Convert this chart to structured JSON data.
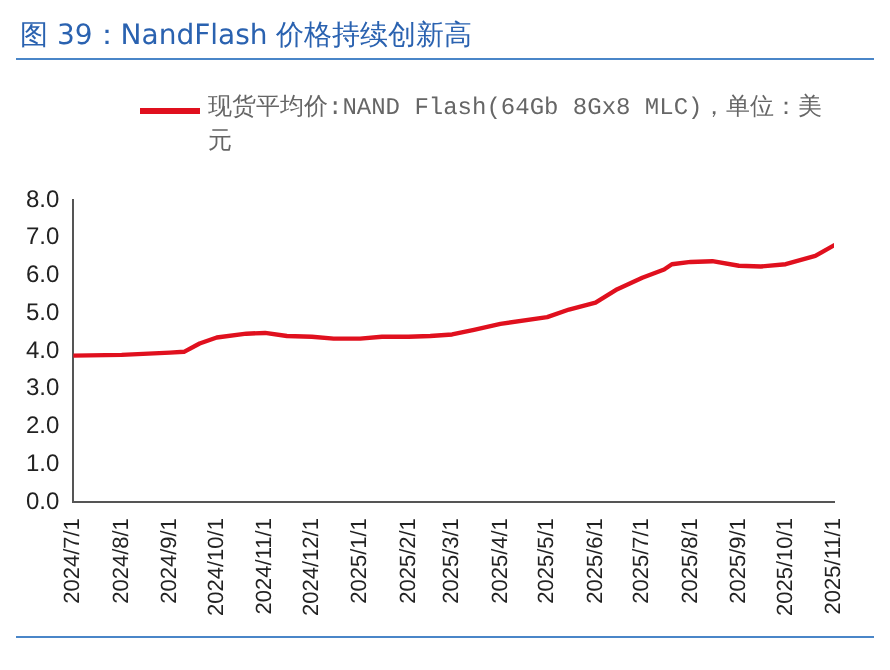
{
  "chart_data": {
    "type": "line",
    "title": "图 39：NandFlash 价格持续创新高",
    "legend": "top left",
    "marker": "none",
    "line_style": "solid",
    "grid": false,
    "series": [
      {
        "name": "现货平均价:NAND Flash(64Gb 8Gx8 MLC)，单位：美元",
        "color": "#e0101e",
        "x": [
          "2024-07-01",
          "2024-08-01",
          "2024-09-01",
          "2024-09-10",
          "2024-09-20",
          "2024-10-01",
          "2024-10-20",
          "2024-11-01",
          "2024-11-15",
          "2024-12-01",
          "2024-12-15",
          "2025-01-01",
          "2025-01-15",
          "2025-02-01",
          "2025-02-15",
          "2025-03-01",
          "2025-03-15",
          "2025-04-01",
          "2025-05-01",
          "2025-05-15",
          "2025-06-01",
          "2025-06-15",
          "2025-07-01",
          "2025-07-15",
          "2025-07-20",
          "2025-08-01",
          "2025-08-15",
          "2025-09-01",
          "2025-09-15",
          "2025-10-01",
          "2025-10-20",
          "2025-11-01"
        ],
        "values": [
          3.88,
          3.9,
          3.96,
          3.98,
          4.2,
          4.36,
          4.46,
          4.48,
          4.4,
          4.38,
          4.33,
          4.33,
          4.38,
          4.38,
          4.4,
          4.44,
          4.56,
          4.72,
          4.9,
          5.1,
          5.28,
          5.64,
          5.94,
          6.16,
          6.3,
          6.36,
          6.38,
          6.26,
          6.24,
          6.3,
          6.52,
          6.8
        ]
      }
    ],
    "xlim": [
      "2024-07-01",
      "2025-11-01"
    ],
    "xticks": [
      {
        "value": "2024-07-01",
        "label": "2024/7/1"
      },
      {
        "value": "2024-08-01",
        "label": "2024/8/1"
      },
      {
        "value": "2024-09-01",
        "label": "2024/9/1"
      },
      {
        "value": "2024-10-01",
        "label": "2024/10/1"
      },
      {
        "value": "2024-11-01",
        "label": "2024/11/1"
      },
      {
        "value": "2024-12-01",
        "label": "2024/12/1"
      },
      {
        "value": "2025-01-01",
        "label": "2025/1/1"
      },
      {
        "value": "2025-02-01",
        "label": "2025/2/1"
      },
      {
        "value": "2025-03-01",
        "label": "2025/3/1"
      },
      {
        "value": "2025-04-01",
        "label": "2025/4/1"
      },
      {
        "value": "2025-05-01",
        "label": "2025/5/1"
      },
      {
        "value": "2025-06-01",
        "label": "2025/6/1"
      },
      {
        "value": "2025-07-01",
        "label": "2025/7/1"
      },
      {
        "value": "2025-08-01",
        "label": "2025/8/1"
      },
      {
        "value": "2025-09-01",
        "label": "2025/9/1"
      },
      {
        "value": "2025-10-01",
        "label": "2025/10/1"
      },
      {
        "value": "2025-11-01",
        "label": "2025/11/1"
      }
    ],
    "ylim": [
      0,
      8
    ],
    "yticks": [
      {
        "value": 0,
        "label": "0.0"
      },
      {
        "value": 1,
        "label": "1.0"
      },
      {
        "value": 2,
        "label": "2.0"
      },
      {
        "value": 3,
        "label": "3.0"
      },
      {
        "value": 4,
        "label": "4.0"
      },
      {
        "value": 5,
        "label": "5.0"
      },
      {
        "value": 6,
        "label": "6.0"
      },
      {
        "value": 7,
        "label": "7.0"
      },
      {
        "value": 8,
        "label": "8.0"
      }
    ]
  }
}
